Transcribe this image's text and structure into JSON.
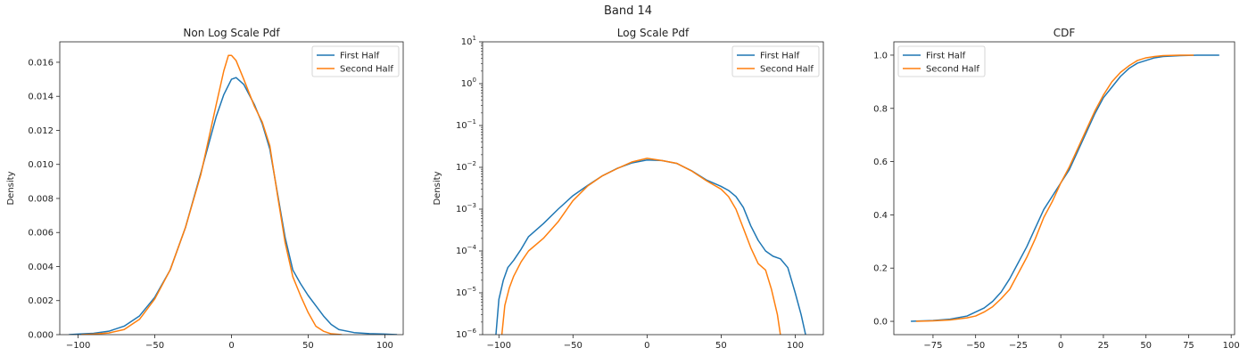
{
  "figure": {
    "suptitle": "Band 14"
  },
  "colors": {
    "first": "#1f77b4",
    "second": "#ff7f0e"
  },
  "chart_data": [
    {
      "type": "line",
      "title": "Non Log Scale Pdf",
      "xlabel": "",
      "ylabel": "Density",
      "xlim": [
        -112,
        112
      ],
      "ylim": [
        0,
        0.0172
      ],
      "xticks": [
        -100,
        -50,
        0,
        50,
        100
      ],
      "xtick_labels": [
        "−100",
        "−50",
        "0",
        "50",
        "100"
      ],
      "yticks": [
        0,
        0.002,
        0.004,
        0.006,
        0.008,
        0.01,
        0.012,
        0.014,
        0.016
      ],
      "ytick_labels": [
        "0.000",
        "0.002",
        "0.004",
        "0.006",
        "0.008",
        "0.010",
        "0.012",
        "0.014",
        "0.016"
      ],
      "legend": {
        "position": "top-right",
        "entries": [
          "First Half",
          "Second Half"
        ]
      },
      "series": [
        {
          "name": "First Half",
          "color": "#1f77b4",
          "points": [
            [
              -106,
              0
            ],
            [
              -100,
              3e-05
            ],
            [
              -90,
              8e-05
            ],
            [
              -80,
              0.0002
            ],
            [
              -70,
              0.0005
            ],
            [
              -60,
              0.0011
            ],
            [
              -50,
              0.0022
            ],
            [
              -40,
              0.0038
            ],
            [
              -30,
              0.0063
            ],
            [
              -20,
              0.0095
            ],
            [
              -10,
              0.0128
            ],
            [
              -5,
              0.0141
            ],
            [
              0,
              0.015
            ],
            [
              3,
              0.0151
            ],
            [
              8,
              0.0147
            ],
            [
              15,
              0.0135
            ],
            [
              20,
              0.0124
            ],
            [
              25,
              0.0109
            ],
            [
              30,
              0.0083
            ],
            [
              35,
              0.0057
            ],
            [
              40,
              0.0038
            ],
            [
              45,
              0.003
            ],
            [
              50,
              0.0023
            ],
            [
              55,
              0.0017
            ],
            [
              60,
              0.0011
            ],
            [
              65,
              0.0006
            ],
            [
              70,
              0.0003
            ],
            [
              80,
              0.00012
            ],
            [
              90,
              6e-05
            ],
            [
              100,
              3e-05
            ],
            [
              108,
              0
            ]
          ]
        },
        {
          "name": "Second Half",
          "color": "#ff7f0e",
          "points": [
            [
              -98,
              0
            ],
            [
              -90,
              3e-05
            ],
            [
              -80,
              0.0001
            ],
            [
              -70,
              0.0003
            ],
            [
              -60,
              0.0009
            ],
            [
              -50,
              0.0021
            ],
            [
              -40,
              0.0038
            ],
            [
              -30,
              0.0063
            ],
            [
              -20,
              0.0094
            ],
            [
              -10,
              0.0135
            ],
            [
              -5,
              0.0155
            ],
            [
              -2,
              0.0164
            ],
            [
              0,
              0.0164
            ],
            [
              3,
              0.0161
            ],
            [
              8,
              0.015
            ],
            [
              15,
              0.0134
            ],
            [
              20,
              0.0125
            ],
            [
              25,
              0.0111
            ],
            [
              30,
              0.0082
            ],
            [
              35,
              0.0054
            ],
            [
              40,
              0.0034
            ],
            [
              45,
              0.0023
            ],
            [
              50,
              0.0013
            ],
            [
              55,
              0.0005
            ],
            [
              60,
              0.0002
            ],
            [
              65,
              5e-05
            ],
            [
              72,
              0
            ]
          ]
        }
      ]
    },
    {
      "type": "line",
      "title": "Log Scale Pdf",
      "xlabel": "",
      "ylabel": "Density",
      "xlim": [
        -111,
        119
      ],
      "ylim": [
        1e-06,
        10
      ],
      "yscale": "log",
      "xticks": [
        -100,
        -50,
        0,
        50,
        100
      ],
      "xtick_labels": [
        "−100",
        "−50",
        "0",
        "50",
        "100"
      ],
      "yticks": [
        1e-06,
        1e-05,
        0.0001,
        0.001,
        0.01,
        0.1,
        1,
        10
      ],
      "ytick_labels": [
        {
          "base": "10",
          "exp": "−6"
        },
        {
          "base": "10",
          "exp": "−5"
        },
        {
          "base": "10",
          "exp": "−4"
        },
        {
          "base": "10",
          "exp": "−3"
        },
        {
          "base": "10",
          "exp": "−2"
        },
        {
          "base": "10",
          "exp": "−1"
        },
        {
          "base": "10",
          "exp": "0"
        },
        {
          "base": "10",
          "exp": "1"
        }
      ],
      "legend": {
        "position": "top-right",
        "entries": [
          "First Half",
          "Second Half"
        ]
      },
      "series": [
        {
          "name": "First Half",
          "color": "#1f77b4",
          "points": [
            [
              -102,
              1e-06
            ],
            [
              -100,
              7e-06
            ],
            [
              -97,
              2e-05
            ],
            [
              -94,
              4e-05
            ],
            [
              -90,
              6e-05
            ],
            [
              -85,
              0.00011
            ],
            [
              -80,
              0.00022
            ],
            [
              -70,
              0.00045
            ],
            [
              -60,
              0.001
            ],
            [
              -50,
              0.0021
            ],
            [
              -40,
              0.0037
            ],
            [
              -30,
              0.0063
            ],
            [
              -20,
              0.0095
            ],
            [
              -10,
              0.0128
            ],
            [
              0,
              0.015
            ],
            [
              10,
              0.0145
            ],
            [
              20,
              0.0124
            ],
            [
              30,
              0.0083
            ],
            [
              40,
              0.005
            ],
            [
              50,
              0.0035
            ],
            [
              55,
              0.0028
            ],
            [
              60,
              0.002
            ],
            [
              65,
              0.0011
            ],
            [
              70,
              0.0004
            ],
            [
              75,
              0.00018
            ],
            [
              80,
              0.0001
            ],
            [
              85,
              7.5e-05
            ],
            [
              90,
              6.5e-05
            ],
            [
              95,
              4e-05
            ],
            [
              100,
              1e-05
            ],
            [
              104,
              3e-06
            ],
            [
              107,
              1e-06
            ]
          ]
        },
        {
          "name": "Second Half",
          "color": "#ff7f0e",
          "points": [
            [
              -98,
              1e-06
            ],
            [
              -96,
              5e-06
            ],
            [
              -93,
              1.3e-05
            ],
            [
              -90,
              2.5e-05
            ],
            [
              -85,
              5.5e-05
            ],
            [
              -80,
              0.0001
            ],
            [
              -70,
              0.0002
            ],
            [
              -60,
              0.0005
            ],
            [
              -50,
              0.0016
            ],
            [
              -40,
              0.0036
            ],
            [
              -30,
              0.0063
            ],
            [
              -20,
              0.0094
            ],
            [
              -10,
              0.0135
            ],
            [
              0,
              0.0164
            ],
            [
              10,
              0.0145
            ],
            [
              20,
              0.0125
            ],
            [
              30,
              0.0082
            ],
            [
              40,
              0.0048
            ],
            [
              50,
              0.003
            ],
            [
              55,
              0.002
            ],
            [
              60,
              0.001
            ],
            [
              65,
              0.00035
            ],
            [
              70,
              0.00012
            ],
            [
              75,
              5e-05
            ],
            [
              80,
              3.5e-05
            ],
            [
              84,
              1.2e-05
            ],
            [
              88,
              3e-06
            ],
            [
              90,
              1e-06
            ]
          ]
        }
      ]
    },
    {
      "type": "line",
      "title": "CDF",
      "xlabel": "",
      "ylabel": "",
      "xlim": [
        -98,
        102
      ],
      "ylim": [
        -0.05,
        1.05
      ],
      "xticks": [
        -75,
        -50,
        -25,
        0,
        25,
        50,
        75,
        100
      ],
      "xtick_labels": [
        "−75",
        "−50",
        "−25",
        "0",
        "25",
        "50",
        "75",
        "100"
      ],
      "yticks": [
        0,
        0.2,
        0.4,
        0.6,
        0.8,
        1.0
      ],
      "ytick_labels": [
        "0.0",
        "0.2",
        "0.4",
        "0.6",
        "0.8",
        "1.0"
      ],
      "legend": {
        "position": "top-left",
        "entries": [
          "First Half",
          "Second Half"
        ]
      },
      "series": [
        {
          "name": "First Half",
          "color": "#1f77b4",
          "points": [
            [
              -88,
              0
            ],
            [
              -75,
              0.003
            ],
            [
              -65,
              0.008
            ],
            [
              -55,
              0.02
            ],
            [
              -50,
              0.035
            ],
            [
              -45,
              0.05
            ],
            [
              -40,
              0.075
            ],
            [
              -35,
              0.11
            ],
            [
              -30,
              0.16
            ],
            [
              -25,
              0.22
            ],
            [
              -20,
              0.28
            ],
            [
              -15,
              0.35
            ],
            [
              -10,
              0.42
            ],
            [
              -5,
              0.47
            ],
            [
              0,
              0.52
            ],
            [
              5,
              0.57
            ],
            [
              10,
              0.64
            ],
            [
              15,
              0.71
            ],
            [
              20,
              0.78
            ],
            [
              25,
              0.84
            ],
            [
              30,
              0.88
            ],
            [
              35,
              0.92
            ],
            [
              40,
              0.95
            ],
            [
              45,
              0.97
            ],
            [
              50,
              0.98
            ],
            [
              55,
              0.99
            ],
            [
              60,
              0.995
            ],
            [
              70,
              0.998
            ],
            [
              80,
              1.0
            ],
            [
              93,
              1.0
            ]
          ]
        },
        {
          "name": "Second Half",
          "color": "#ff7f0e",
          "points": [
            [
              -85,
              0
            ],
            [
              -75,
              0.002
            ],
            [
              -65,
              0.005
            ],
            [
              -55,
              0.013
            ],
            [
              -50,
              0.02
            ],
            [
              -45,
              0.035
            ],
            [
              -40,
              0.055
            ],
            [
              -35,
              0.085
            ],
            [
              -30,
              0.12
            ],
            [
              -25,
              0.18
            ],
            [
              -20,
              0.24
            ],
            [
              -15,
              0.31
            ],
            [
              -10,
              0.39
            ],
            [
              -5,
              0.45
            ],
            [
              0,
              0.52
            ],
            [
              5,
              0.58
            ],
            [
              10,
              0.65
            ],
            [
              15,
              0.72
            ],
            [
              20,
              0.79
            ],
            [
              25,
              0.85
            ],
            [
              30,
              0.9
            ],
            [
              35,
              0.935
            ],
            [
              40,
              0.96
            ],
            [
              45,
              0.98
            ],
            [
              50,
              0.99
            ],
            [
              55,
              0.995
            ],
            [
              60,
              0.998
            ],
            [
              70,
              1.0
            ],
            [
              78,
              1.0
            ]
          ]
        }
      ]
    }
  ]
}
